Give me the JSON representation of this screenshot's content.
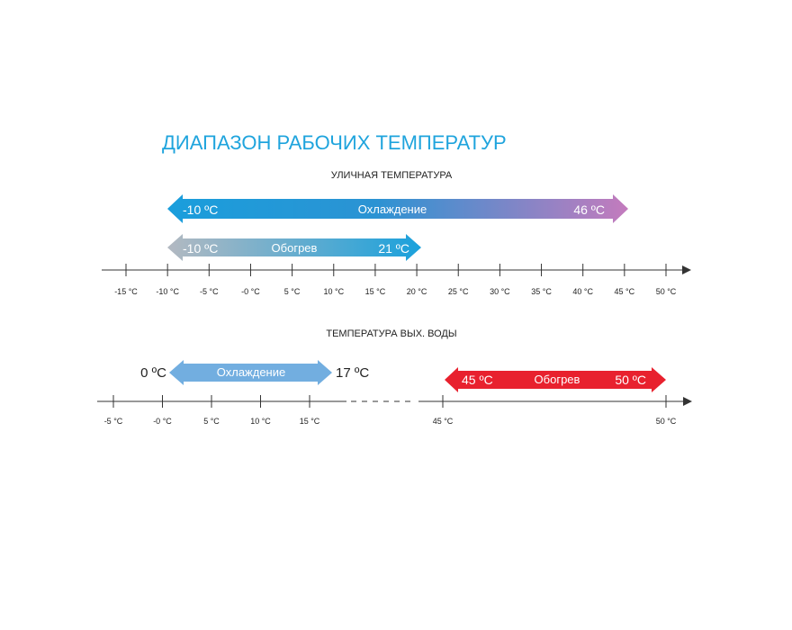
{
  "title": "ДИАПАЗОН РАБОЧИХ ТЕМПЕРАТУР",
  "colors": {
    "title": "#1fa4dd",
    "cooling_start": "#1a9edc",
    "cooling_end": "#c47bbd",
    "heating_start": "#b3b9c1",
    "heating_end": "#1aa1dc",
    "water_cooling": "#72aee0",
    "water_heating": "#e8212e"
  },
  "outdoor": {
    "heading": "УЛИЧНАЯ ТЕМПЕРАТУРА",
    "ticks": [
      "-15 °C",
      "-10 °C",
      "-5 °C",
      "-0 °C",
      "5 °C",
      "10 °C",
      "15 °C",
      "20 °C",
      "25 °C",
      "30 °C",
      "35 °C",
      "40 °C",
      "45 °C",
      "50 °C"
    ],
    "tick_values": [
      -15,
      -10,
      -5,
      0,
      5,
      10,
      15,
      20,
      25,
      30,
      35,
      40,
      45,
      50
    ],
    "cooling": {
      "label": "Охлаждение",
      "min_label": "-10 ºC",
      "max_label": "46 ºC",
      "min": -10,
      "max": 46
    },
    "heating": {
      "label": "Обогрев",
      "min_label": "-10 ºC",
      "max_label": "21 ºC",
      "min": -10,
      "max": 21
    }
  },
  "water": {
    "heading": "ТЕМПЕРАТУРА ВЫХ. ВОДЫ",
    "ticks_left": [
      "-5 °C",
      "-0 °C",
      "5 °C",
      "10 °C",
      "15 °C"
    ],
    "tick_values_left": [
      -5,
      0,
      5,
      10,
      15
    ],
    "ticks_right": [
      "45 °C",
      "50 °C"
    ],
    "tick_values_right": [
      45,
      50
    ],
    "cooling": {
      "label": "Охлаждение",
      "min_label": "0 ºC",
      "max_label": "17 ºC",
      "min": 0,
      "max": 17
    },
    "heating": {
      "label": "Обогрев",
      "min_label": "45 ºC",
      "max_label": "50 ºC",
      "min": 45,
      "max": 50
    }
  }
}
